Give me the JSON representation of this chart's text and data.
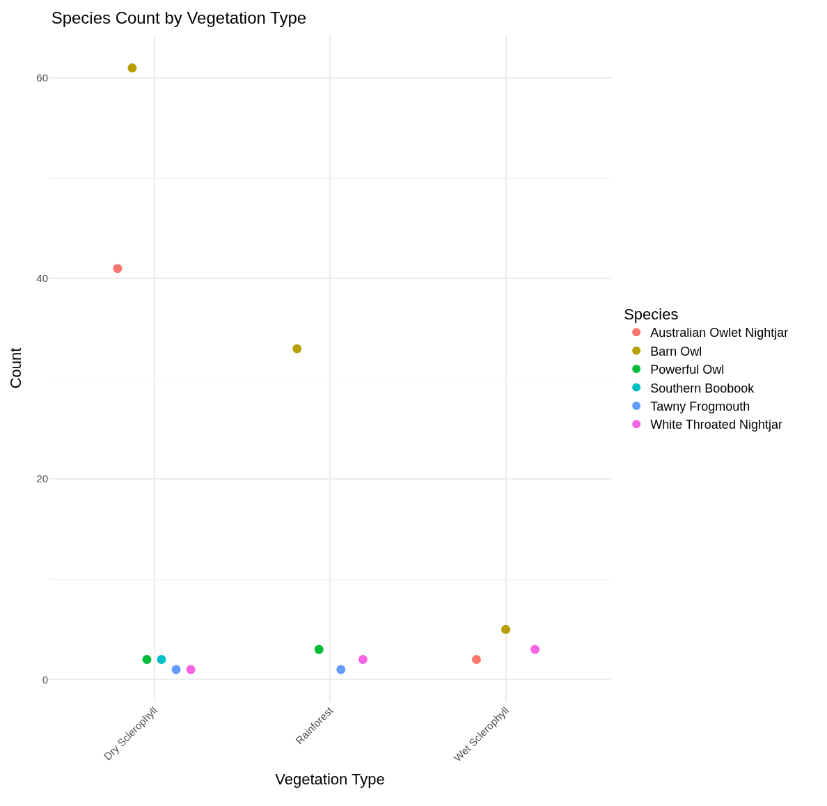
{
  "chart_data": {
    "type": "scatter",
    "title": "Species Count by Vegetation Type",
    "xlabel": "Vegetation Type",
    "ylabel": "Count",
    "legend_title": "Species",
    "categories": [
      "Dry Sclerophyll",
      "Rainforest",
      "Wet Sclerophyll"
    ],
    "series": [
      {
        "name": "Australian Owlet Nightjar",
        "color": "#f8766d",
        "values": [
          41,
          null,
          2
        ]
      },
      {
        "name": "Barn Owl",
        "color": "#b79f00",
        "values": [
          61,
          33,
          5
        ]
      },
      {
        "name": "Powerful Owl",
        "color": "#00ba38",
        "values": [
          2,
          3,
          null
        ]
      },
      {
        "name": "Southern Boobook",
        "color": "#00bfc4",
        "values": [
          2,
          null,
          null
        ]
      },
      {
        "name": "Tawny Frogmouth",
        "color": "#619cff",
        "values": [
          1,
          1,
          null
        ]
      },
      {
        "name": "White Throated Nightjar",
        "color": "#f564e3",
        "values": [
          1,
          2,
          3
        ]
      }
    ],
    "ylim": [
      -2.2,
      64.3
    ],
    "yticks": [
      0,
      20,
      40,
      60
    ],
    "grid": true,
    "legend": "right",
    "marker": "circle"
  }
}
